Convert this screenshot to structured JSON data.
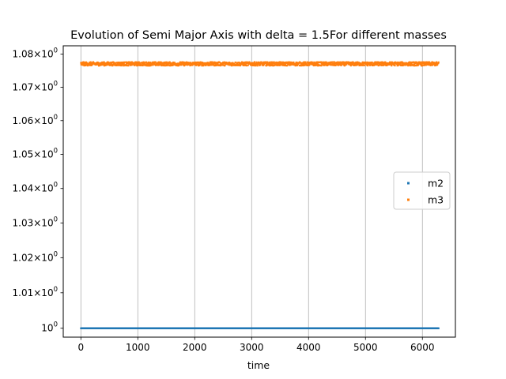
{
  "chart_data": {
    "type": "scatter",
    "title": "Evolution of Semi Major Axis with delta = 1.5For different masses",
    "xlabel": "time",
    "ylabel": "",
    "yscale": "log",
    "xlim": [
      -310,
      6580
    ],
    "ylim": [
      0.9975,
      1.0825
    ],
    "x_ticks": [
      0,
      1000,
      2000,
      3000,
      4000,
      5000,
      6000
    ],
    "x_tick_labels": [
      "0",
      "1000",
      "2000",
      "3000",
      "4000",
      "5000",
      "6000"
    ],
    "y_ticks": [
      1.0,
      1.01,
      1.02,
      1.03,
      1.04,
      1.05,
      1.06,
      1.07,
      1.08
    ],
    "y_tick_labels": [
      {
        "mantissa": "",
        "base": "10",
        "exp": "0"
      },
      {
        "mantissa": "1.01",
        "base": "10",
        "exp": "0"
      },
      {
        "mantissa": "1.02",
        "base": "10",
        "exp": "0"
      },
      {
        "mantissa": "1.03",
        "base": "10",
        "exp": "0"
      },
      {
        "mantissa": "1.04",
        "base": "10",
        "exp": "0"
      },
      {
        "mantissa": "1.05",
        "base": "10",
        "exp": "0"
      },
      {
        "mantissa": "1.06",
        "base": "10",
        "exp": "0"
      },
      {
        "mantissa": "1.07",
        "base": "10",
        "exp": "0"
      },
      {
        "mantissa": "1.08",
        "base": "10",
        "exp": "0"
      }
    ],
    "grid": "vertical",
    "legend_position": "center-right",
    "series": [
      {
        "name": "m2",
        "color": "#1f77b4",
        "x_range": [
          0,
          6283
        ],
        "y_min": 1.0,
        "y_max": 1.0,
        "y_mean": 1.0
      },
      {
        "name": "m3",
        "color": "#ff7f0e",
        "x_range": [
          0,
          6283
        ],
        "y_min": 1.0765,
        "y_max": 1.0776,
        "y_mean": 1.07705
      }
    ]
  }
}
